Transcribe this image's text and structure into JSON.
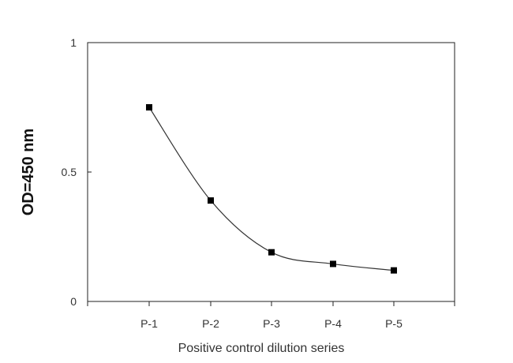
{
  "chart_data": {
    "type": "line",
    "title": "",
    "xlabel": "Positive control dilution series",
    "ylabel": "OD=450 nm",
    "categories": [
      "P-1",
      "P-2",
      "P-3",
      "P-4",
      "P-5"
    ],
    "series": [
      {
        "values": [
          0.75,
          0.39,
          0.19,
          0.145,
          0.12
        ],
        "marker": "square",
        "smooth": true
      }
    ],
    "ylim": [
      0,
      1
    ],
    "yticks": [
      {
        "value": 0,
        "label": "0"
      },
      {
        "value": 0.5,
        "label": "0.5"
      },
      {
        "value": 1,
        "label": "1"
      }
    ],
    "grid": false,
    "legend": "none",
    "colors": {
      "line": "#333333",
      "marker": "#000000",
      "axis": "#222222"
    }
  }
}
